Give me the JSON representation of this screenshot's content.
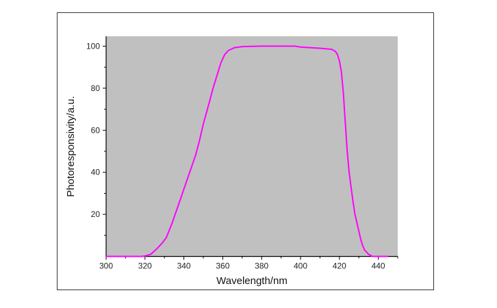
{
  "chart_data": {
    "type": "line",
    "xlabel": "Wavelength/nm",
    "ylabel": "Photoresponsivity/a.u.",
    "xlim": [
      300,
      450
    ],
    "ylim": [
      0,
      104.7
    ],
    "xticks": [
      300,
      320,
      340,
      360,
      380,
      400,
      420,
      440
    ],
    "yticks": [
      20,
      40,
      60,
      80,
      100
    ],
    "x_minor_step": 10,
    "y_minor_step": 10,
    "grid": false,
    "background_color": "#c0c0c0",
    "series": [
      {
        "color": "#ff00ff",
        "x": [
          300,
          318,
          320,
          323,
          326,
          329,
          331,
          334,
          337,
          340,
          343,
          346,
          348,
          350,
          353,
          355,
          357,
          359,
          361,
          363,
          366,
          370,
          380,
          390,
          397,
          400,
          405,
          410,
          416,
          418,
          419,
          420,
          421,
          422,
          423,
          424,
          425,
          426,
          427,
          428,
          429,
          430,
          431,
          432,
          433,
          435,
          437,
          445
        ],
        "y": [
          0,
          0,
          0.2,
          1,
          3.5,
          6.5,
          9,
          16,
          24,
          32,
          40,
          48,
          55,
          63,
          73,
          80,
          86,
          92,
          96,
          98,
          99.3,
          99.8,
          100,
          100,
          100,
          99.6,
          99.3,
          99,
          98.5,
          97.5,
          96,
          93,
          88,
          78,
          64,
          50,
          40,
          33,
          26,
          20,
          16,
          12,
          8,
          5,
          3,
          1,
          0,
          0
        ]
      }
    ]
  }
}
